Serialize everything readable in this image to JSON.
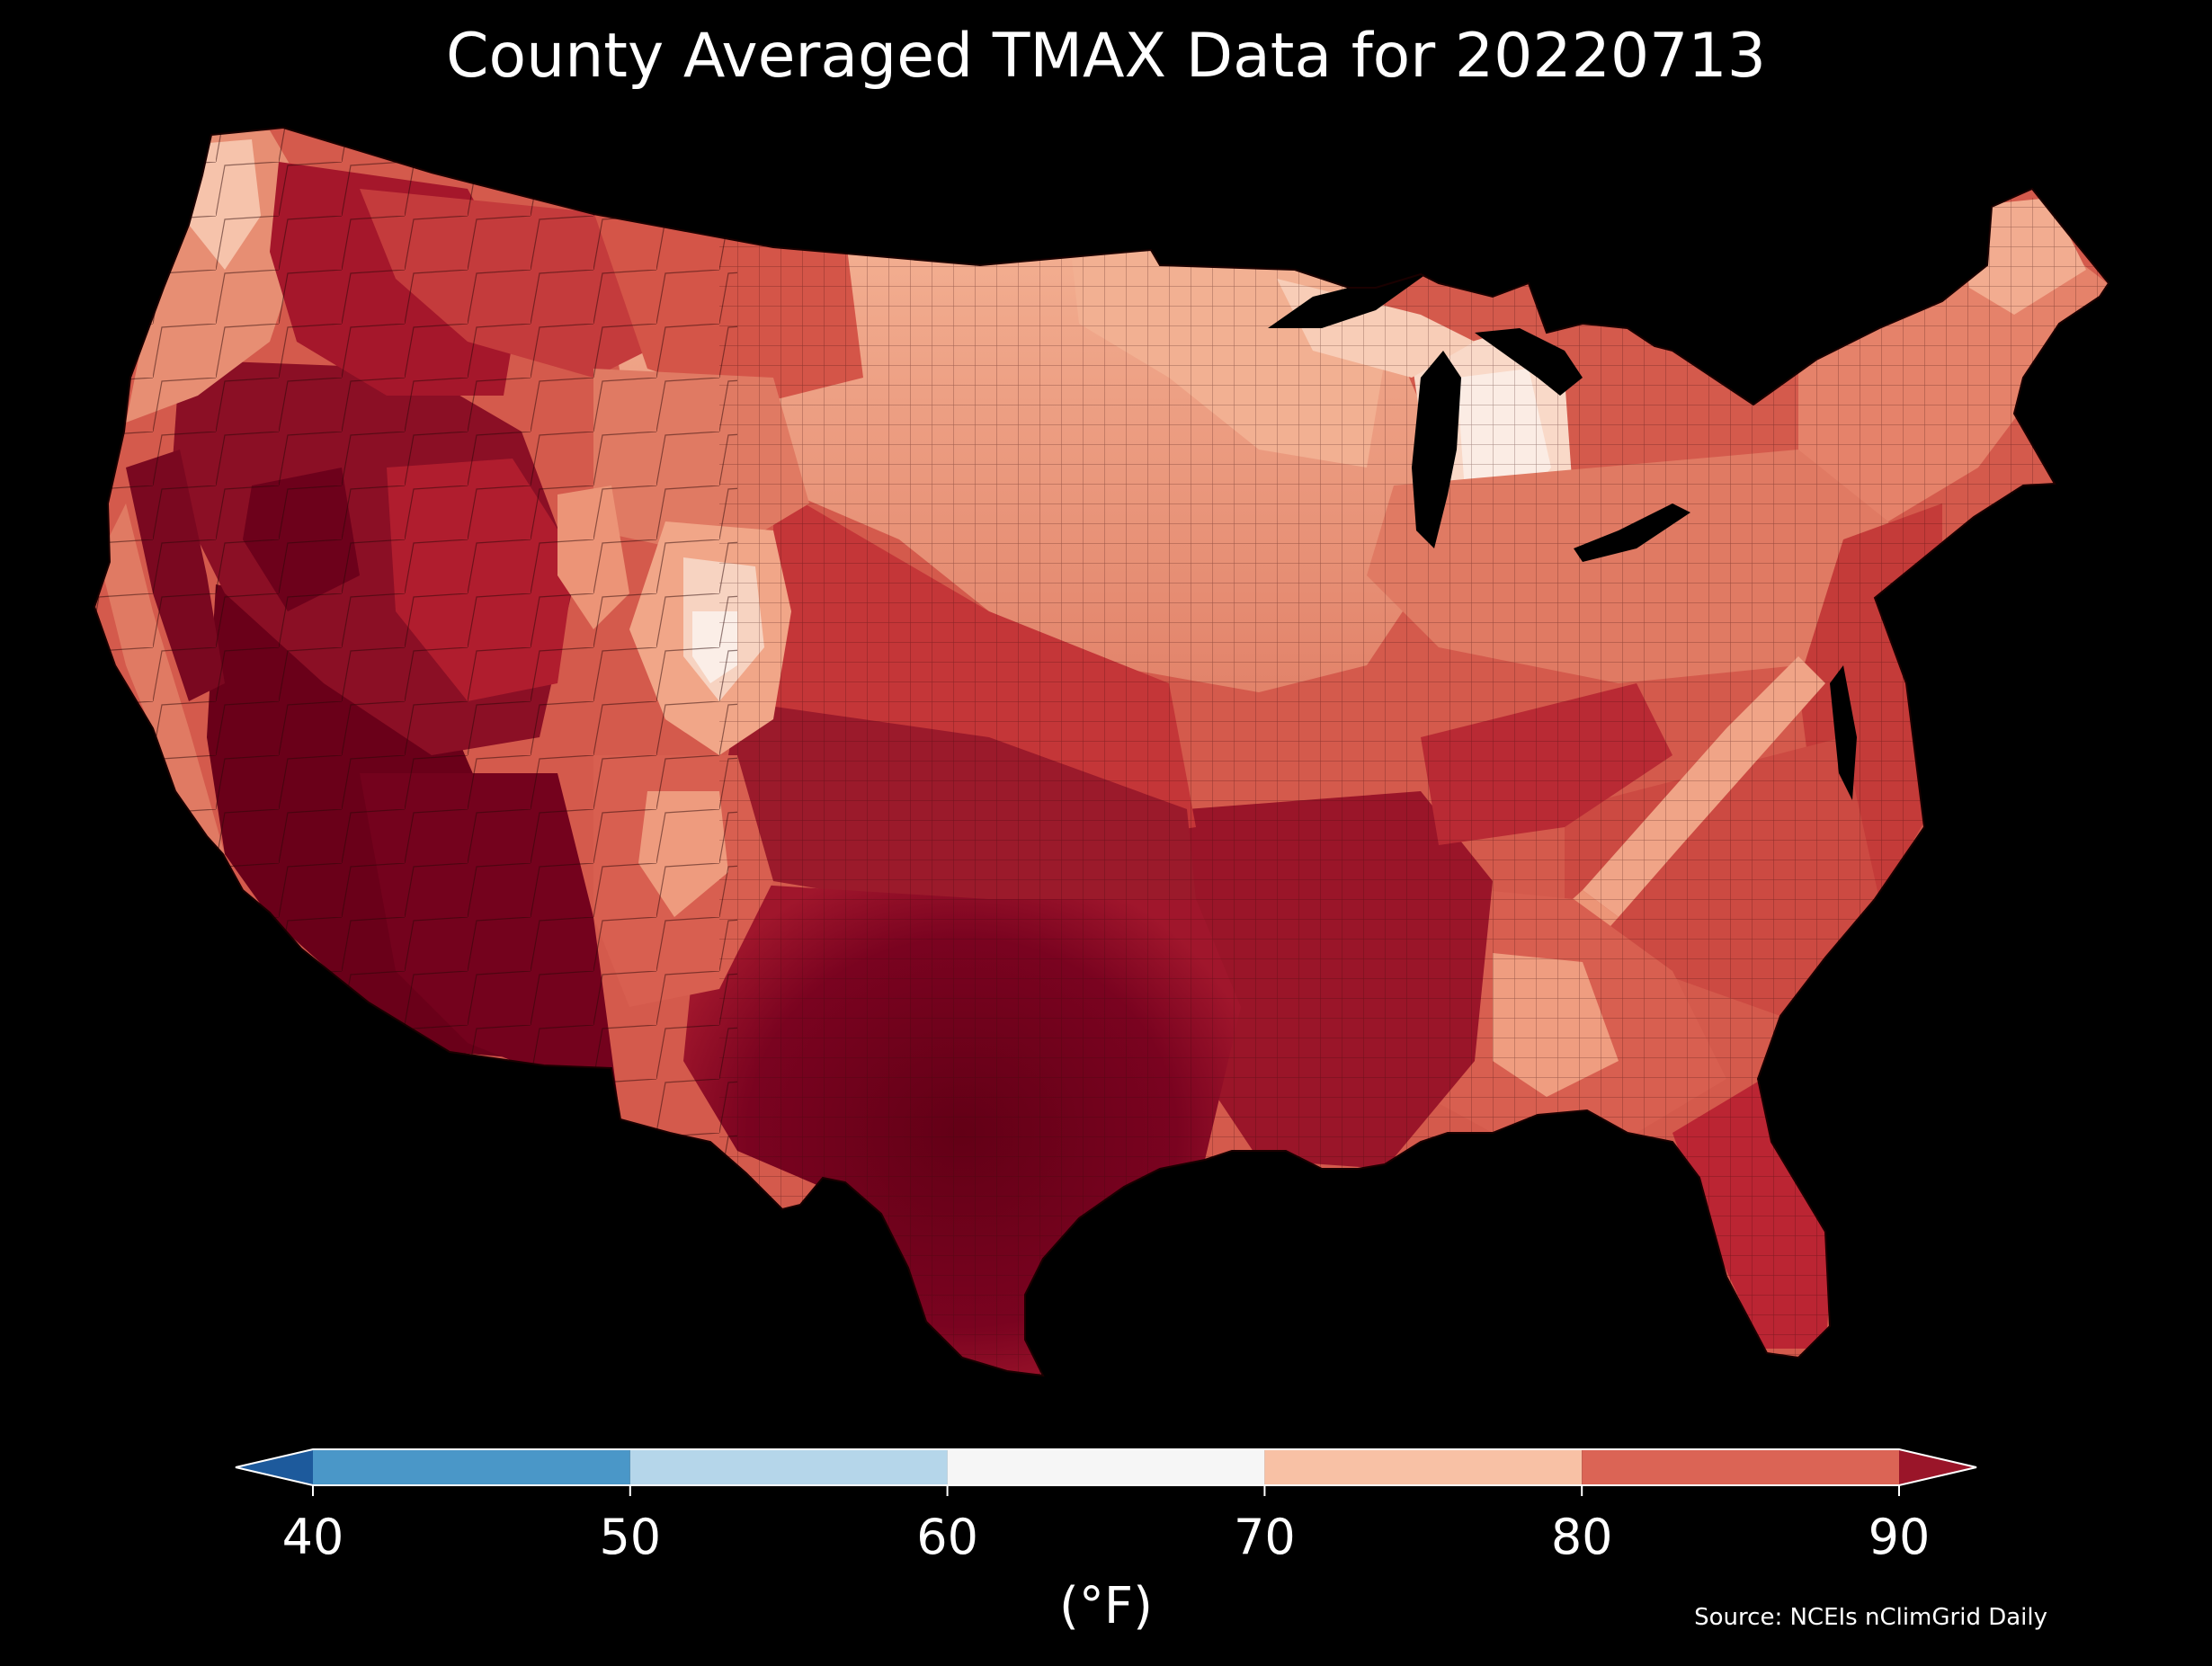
{
  "title": "County Averaged TMAX Data for 20220713",
  "colorbar": {
    "ticks": [
      "40",
      "50",
      "60",
      "70",
      "80",
      "90"
    ],
    "unit": "(°F)",
    "bins": [
      {
        "from": 40,
        "to": 50,
        "color": "#4a97c8"
      },
      {
        "from": 50,
        "to": 60,
        "color": "#b5d6ea"
      },
      {
        "from": 60,
        "to": 70,
        "color": "#f6f6f6"
      },
      {
        "from": 70,
        "to": 80,
        "color": "#f8c1a5"
      },
      {
        "from": 80,
        "to": 90,
        "color": "#db6455"
      }
    ],
    "under_color": "#1d5a9c",
    "over_color": "#9a1529"
  },
  "source": "Source: NCEIs nClimGrid Daily",
  "map_colors": {
    "hottest": "#6a0019",
    "very_hot": "#8c0d24",
    "hot": "#b01d2e",
    "warm": "#cc3f3b",
    "mild": "#e07660",
    "cool": "#f0a487",
    "coolest": "#fbe6dc"
  }
}
